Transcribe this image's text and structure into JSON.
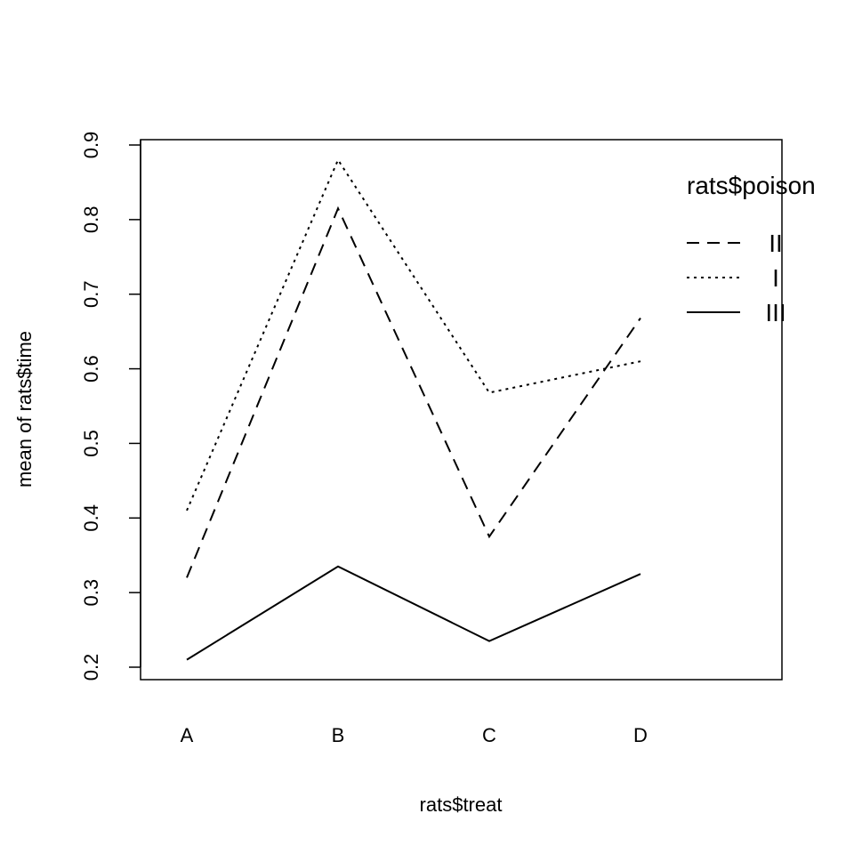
{
  "chart_data": {
    "type": "line",
    "title": "",
    "xlabel": "rats$treat",
    "ylabel": "mean of  rats$time",
    "categories": [
      "A",
      "B",
      "C",
      "D"
    ],
    "ylim": [
      0.2,
      0.9
    ],
    "yticks": [
      "0.2",
      "0.3",
      "0.4",
      "0.5",
      "0.6",
      "0.7",
      "0.8",
      "0.9"
    ],
    "grid": false,
    "legend": {
      "title": "rats$poison",
      "position": "top-right",
      "entries": [
        "II",
        "I",
        "III"
      ]
    },
    "series": [
      {
        "name": "II",
        "linestyle": "dashed",
        "values": [
          0.32,
          0.815,
          0.375,
          0.668
        ]
      },
      {
        "name": "I",
        "linestyle": "dotted",
        "values": [
          0.41,
          0.88,
          0.568,
          0.61
        ]
      },
      {
        "name": "III",
        "linestyle": "solid",
        "values": [
          0.21,
          0.335,
          0.235,
          0.325
        ]
      }
    ]
  }
}
